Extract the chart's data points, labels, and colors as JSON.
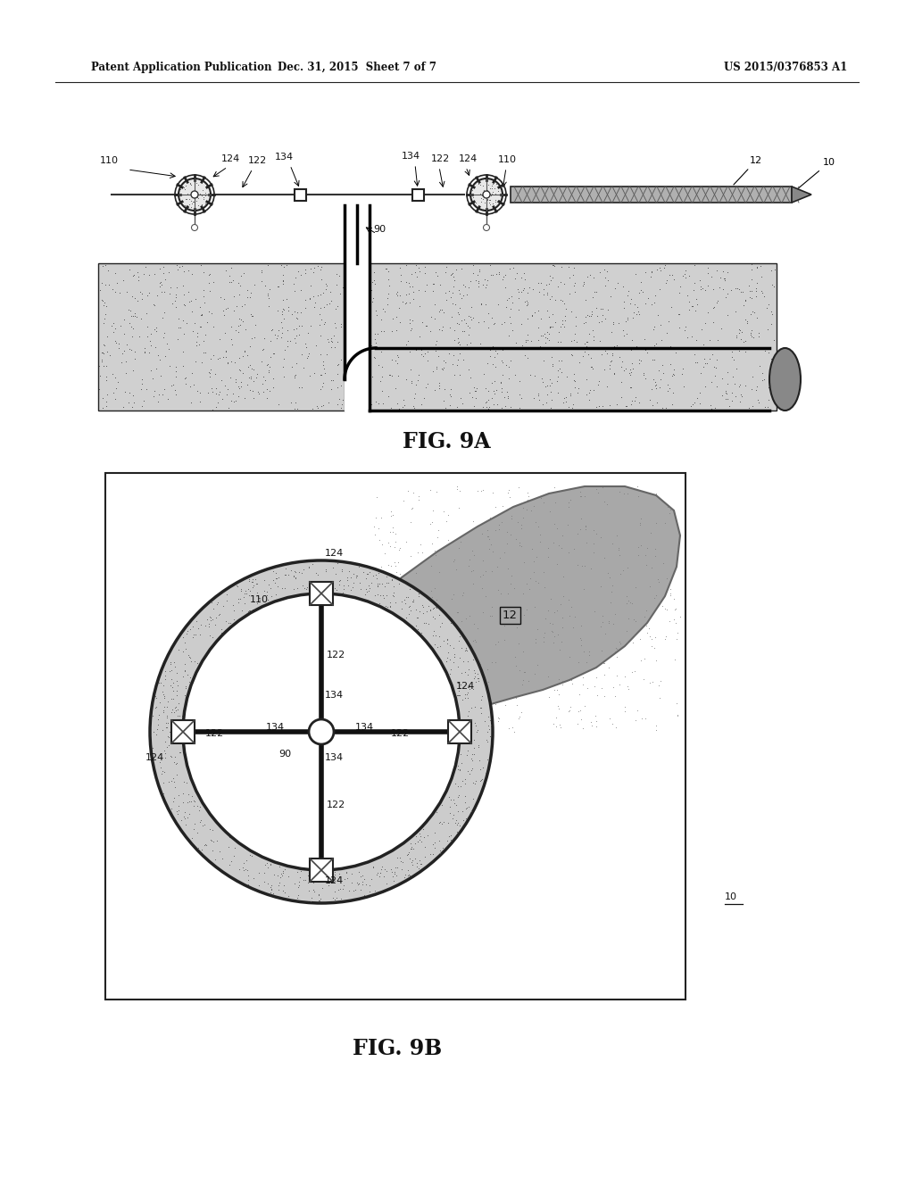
{
  "bg_color": "#ffffff",
  "header_left": "Patent Application Publication",
  "header_mid": "Dec. 31, 2015  Sheet 7 of 7",
  "header_right": "US 2015/0376853 A1",
  "fig_9a_label": "FIG. 9A",
  "fig_9b_label": "FIG. 9B",
  "ground_fill": "#d8d8d8",
  "rock_fill": "#a0a0a0",
  "annulus_fill": "#cccccc"
}
